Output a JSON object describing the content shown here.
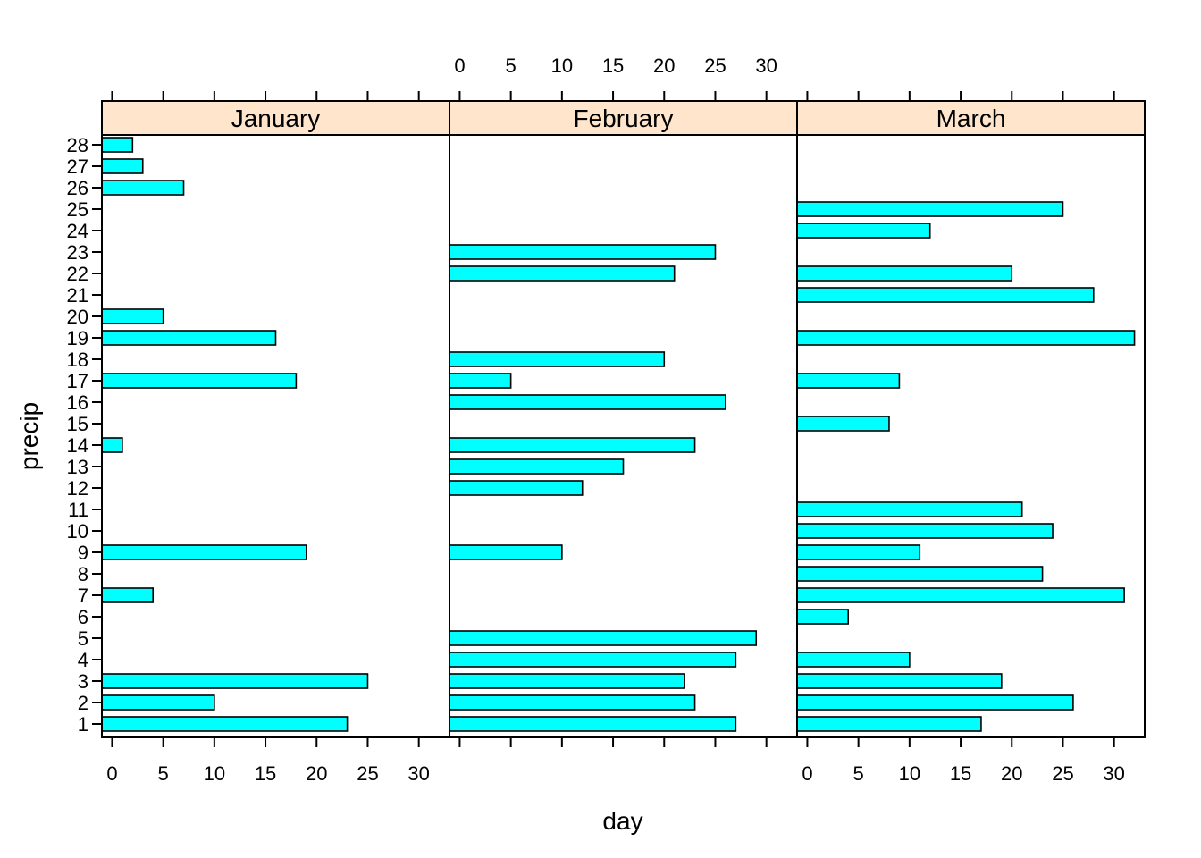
{
  "chart_data": {
    "type": "bar",
    "orientation": "horizontal",
    "xlabel": "day",
    "ylabel": "precip",
    "xlim": [
      -1,
      33
    ],
    "x_ticks": [
      0,
      5,
      10,
      15,
      20,
      25,
      30
    ],
    "y_categories": [
      "1",
      "2",
      "3",
      "4",
      "5",
      "6",
      "7",
      "8",
      "9",
      "10",
      "11",
      "12",
      "13",
      "14",
      "15",
      "16",
      "17",
      "18",
      "19",
      "20",
      "21",
      "22",
      "23",
      "24",
      "25",
      "26",
      "27",
      "28"
    ],
    "strip_color": "#ffe5cc",
    "bar_color": "#00ffff",
    "panels": [
      {
        "name": "January",
        "values": [
          23,
          10,
          25,
          null,
          null,
          null,
          4,
          null,
          19,
          null,
          null,
          null,
          null,
          1,
          null,
          null,
          18,
          null,
          16,
          5,
          null,
          null,
          null,
          null,
          null,
          7,
          3,
          2
        ]
      },
      {
        "name": "February",
        "values": [
          27,
          23,
          22,
          27,
          29,
          null,
          null,
          null,
          10,
          null,
          null,
          12,
          16,
          23,
          null,
          26,
          5,
          20,
          null,
          null,
          null,
          21,
          25,
          null,
          null,
          null,
          null,
          null
        ]
      },
      {
        "name": "March",
        "values": [
          17,
          26,
          19,
          10,
          null,
          4,
          31,
          23,
          11,
          24,
          21,
          null,
          null,
          null,
          8,
          null,
          9,
          null,
          32,
          null,
          28,
          20,
          null,
          12,
          25,
          null,
          null,
          null
        ]
      }
    ]
  }
}
